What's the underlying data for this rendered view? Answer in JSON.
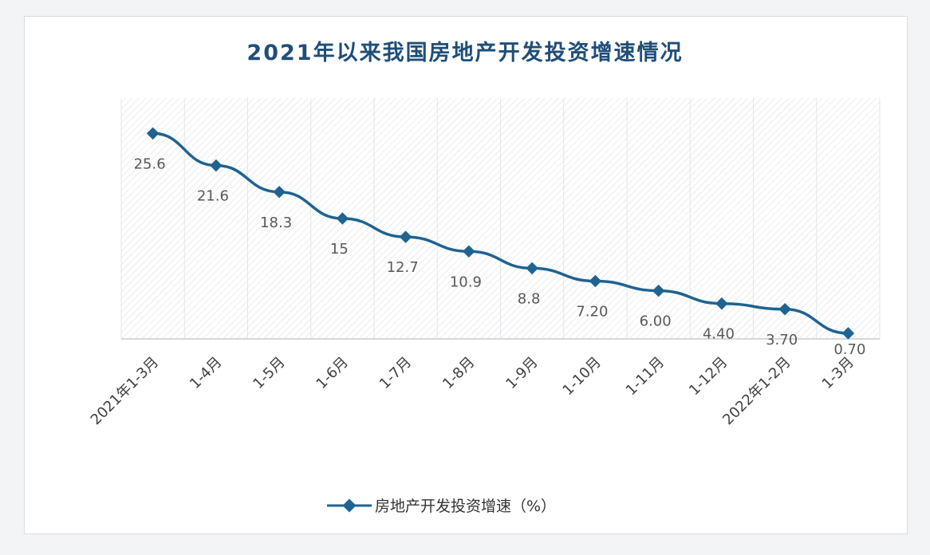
{
  "chart_data": {
    "type": "line",
    "title": "2021年以来我国房地产开发投资增速情况",
    "categories": [
      "2021年1-3月",
      "1-4月",
      "1-5月",
      "1-6月",
      "1-7月",
      "1-8月",
      "1-9月",
      "1-10月",
      "1-11月",
      "1-12月",
      "2022年1-2月",
      "1-3月"
    ],
    "series": [
      {
        "name": "房地产开发投资增速（%）",
        "values": [
          25.6,
          21.6,
          18.3,
          15,
          12.7,
          10.9,
          8.8,
          7.2,
          6.0,
          4.4,
          3.7,
          0.7
        ],
        "labels": [
          "25.6",
          "21.6",
          "18.3",
          "15",
          "12.7",
          "10.9",
          "8.8",
          "7.20",
          "6.00",
          "4.40",
          "3.70",
          "0.70"
        ]
      }
    ],
    "ylim": [
      0,
      30
    ],
    "grid": "vertical",
    "legend": "bottom",
    "colors": {
      "line": "#1f6391",
      "title": "#1f4e79"
    }
  }
}
